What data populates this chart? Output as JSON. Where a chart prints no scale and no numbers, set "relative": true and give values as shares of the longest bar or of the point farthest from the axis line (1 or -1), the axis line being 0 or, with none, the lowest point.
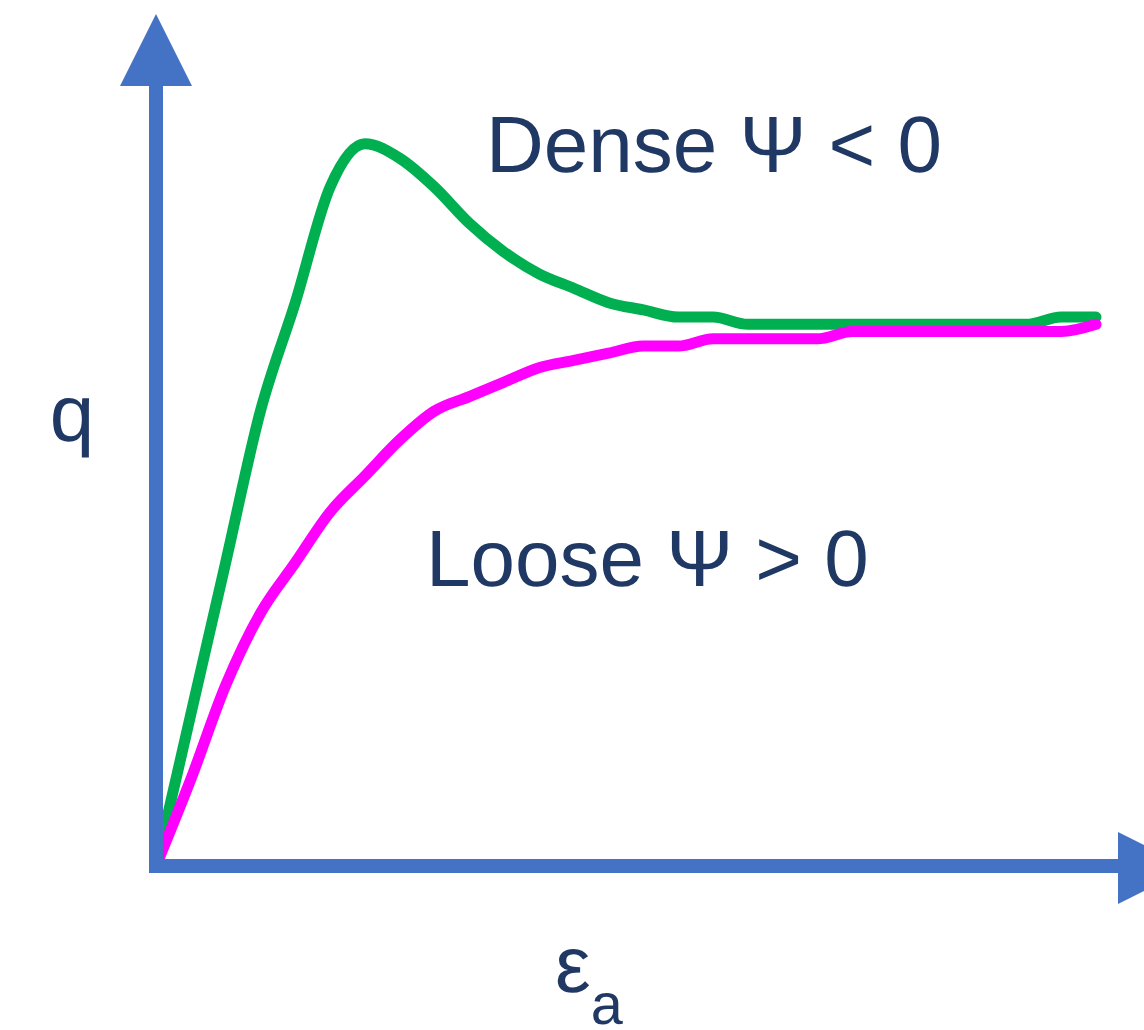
{
  "chart_data": {
    "type": "line",
    "relative": true,
    "xlabel": "ε$_{a}$",
    "ylabel": "q",
    "categories": [
      null,
      null,
      null,
      null,
      null,
      null,
      null,
      null,
      null,
      null,
      null,
      null,
      null,
      null,
      null,
      null,
      null,
      null,
      null,
      null,
      null,
      null,
      null,
      null,
      null,
      null,
      null,
      null
    ],
    "series": [
      {
        "name": "Dense Ψ < 0",
        "color": "#00b050",
        "values": [
          0,
          0.21,
          0.42,
          0.63,
          0.78,
          0.94,
          1,
          0.98,
          0.94,
          0.89,
          0.85,
          0.82,
          0.8,
          0.78,
          0.77,
          0.76,
          0.76,
          0.75,
          0.75,
          0.75,
          0.75,
          0.75,
          0.75,
          0.75,
          0.75,
          0.75,
          0.76,
          0.76
        ]
      },
      {
        "name": "Loose Ψ > 0",
        "color": "#ff00ff",
        "values": [
          0,
          0.12,
          0.25,
          0.35,
          0.42,
          0.49,
          0.54,
          0.59,
          0.63,
          0.65,
          0.67,
          0.69,
          0.7,
          0.71,
          0.72,
          0.72,
          0.73,
          0.73,
          0.73,
          0.73,
          0.74,
          0.74,
          0.74,
          0.74,
          0.74,
          0.74,
          0.74,
          0.75
        ]
      }
    ],
    "line_style": "solid"
  }
}
